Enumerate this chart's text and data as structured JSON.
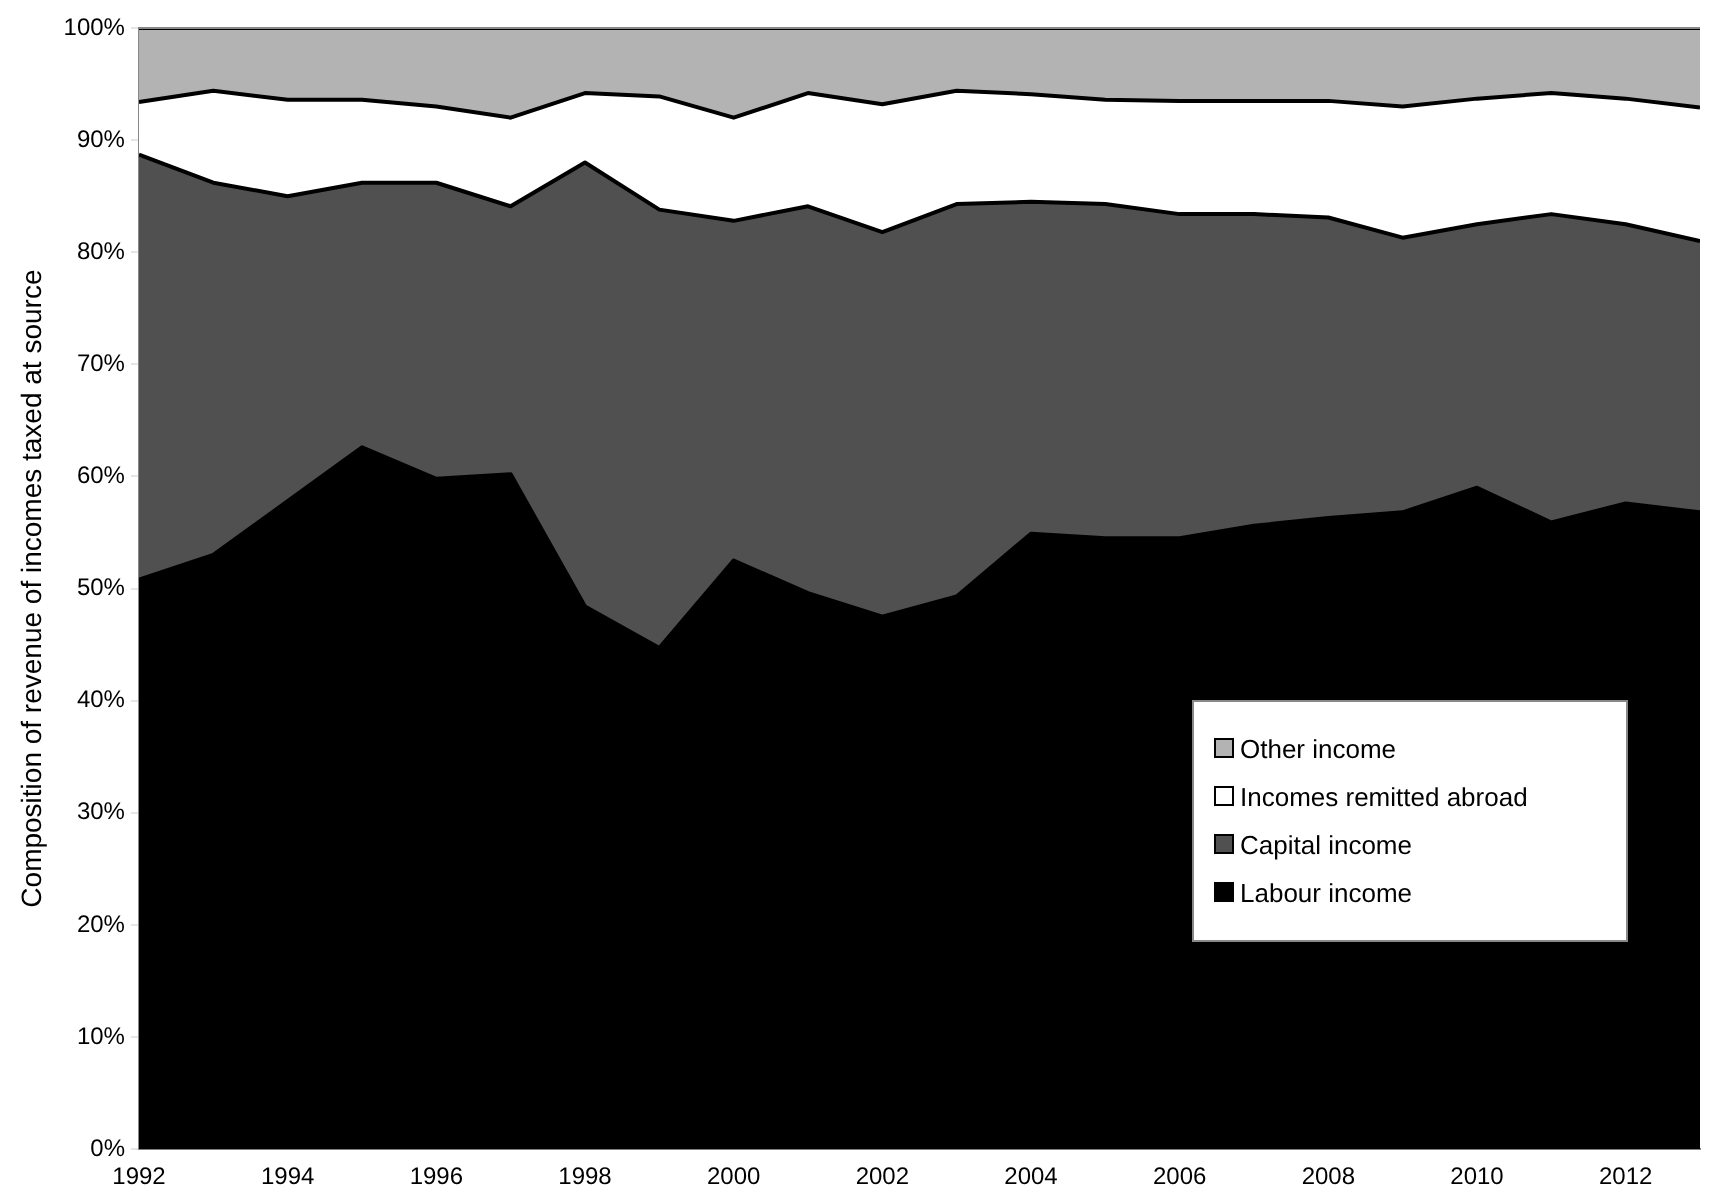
{
  "chart_data": {
    "type": "area",
    "stacked": true,
    "ylabel": "Composition of revenue of incomes taxed at source",
    "x": [
      1992,
      1993,
      1994,
      1995,
      1996,
      1997,
      1998,
      1999,
      2000,
      2001,
      2002,
      2003,
      2004,
      2005,
      2006,
      2007,
      2008,
      2009,
      2010,
      2011,
      2012,
      2013
    ],
    "xlim": [
      1992,
      2013
    ],
    "xticks": [
      1992,
      1994,
      1996,
      1998,
      2000,
      2002,
      2004,
      2006,
      2008,
      2010,
      2012
    ],
    "ylim": [
      0,
      100
    ],
    "yticks": [
      {
        "value": 0,
        "label": "0%"
      },
      {
        "value": 10,
        "label": "10%"
      },
      {
        "value": 20,
        "label": "20%"
      },
      {
        "value": 30,
        "label": "30%"
      },
      {
        "value": 40,
        "label": "40%"
      },
      {
        "value": 50,
        "label": "50%"
      },
      {
        "value": 60,
        "label": "60%"
      },
      {
        "value": 70,
        "label": "70%"
      },
      {
        "value": 80,
        "label": "80%"
      },
      {
        "value": 90,
        "label": "90%"
      },
      {
        "value": 100,
        "label": "100%"
      }
    ],
    "grid": false,
    "legend": "bottom right",
    "series": [
      {
        "name": "Labour income",
        "color": "#000000",
        "values": [
          50.8,
          53,
          57.8,
          62.6,
          59.8,
          60.2,
          48.4,
          44.7,
          52.5,
          49.6,
          47.5,
          49.3,
          54.9,
          54.5,
          54.5,
          55.6,
          56.3,
          56.8,
          59,
          55.9,
          57.6,
          56.8
        ]
      },
      {
        "name": "Capital income",
        "color": "#505050",
        "values": [
          37.9,
          33.2,
          27.2,
          23.6,
          26.4,
          23.9,
          39.6,
          39.1,
          30.3,
          34.5,
          34.3,
          35.0,
          29.6,
          29.8,
          28.9,
          27.8,
          26.8,
          24.5,
          23.5,
          27.5,
          24.9,
          24.2
        ]
      },
      {
        "name": "Incomes remitted abroad",
        "color": "#ffffff",
        "values": [
          4.7,
          8.2,
          8.6,
          7.4,
          6.8,
          7.9,
          6.2,
          10.1,
          9.2,
          10.1,
          11.4,
          10.1,
          9.6,
          9.3,
          10.1,
          10.1,
          10.4,
          11.7,
          11.2,
          10.8,
          11.2,
          11.9
        ]
      },
      {
        "name": "Other income",
        "color": "#b3b3b3",
        "values": [
          6.6,
          5.6,
          6.4,
          6.4,
          7.0,
          8.0,
          5.8,
          6.1,
          8.0,
          5.8,
          6.8,
          5.6,
          5.9,
          6.4,
          6.5,
          6.5,
          6.5,
          7.0,
          6.3,
          5.8,
          6.3,
          7.1
        ]
      }
    ]
  }
}
